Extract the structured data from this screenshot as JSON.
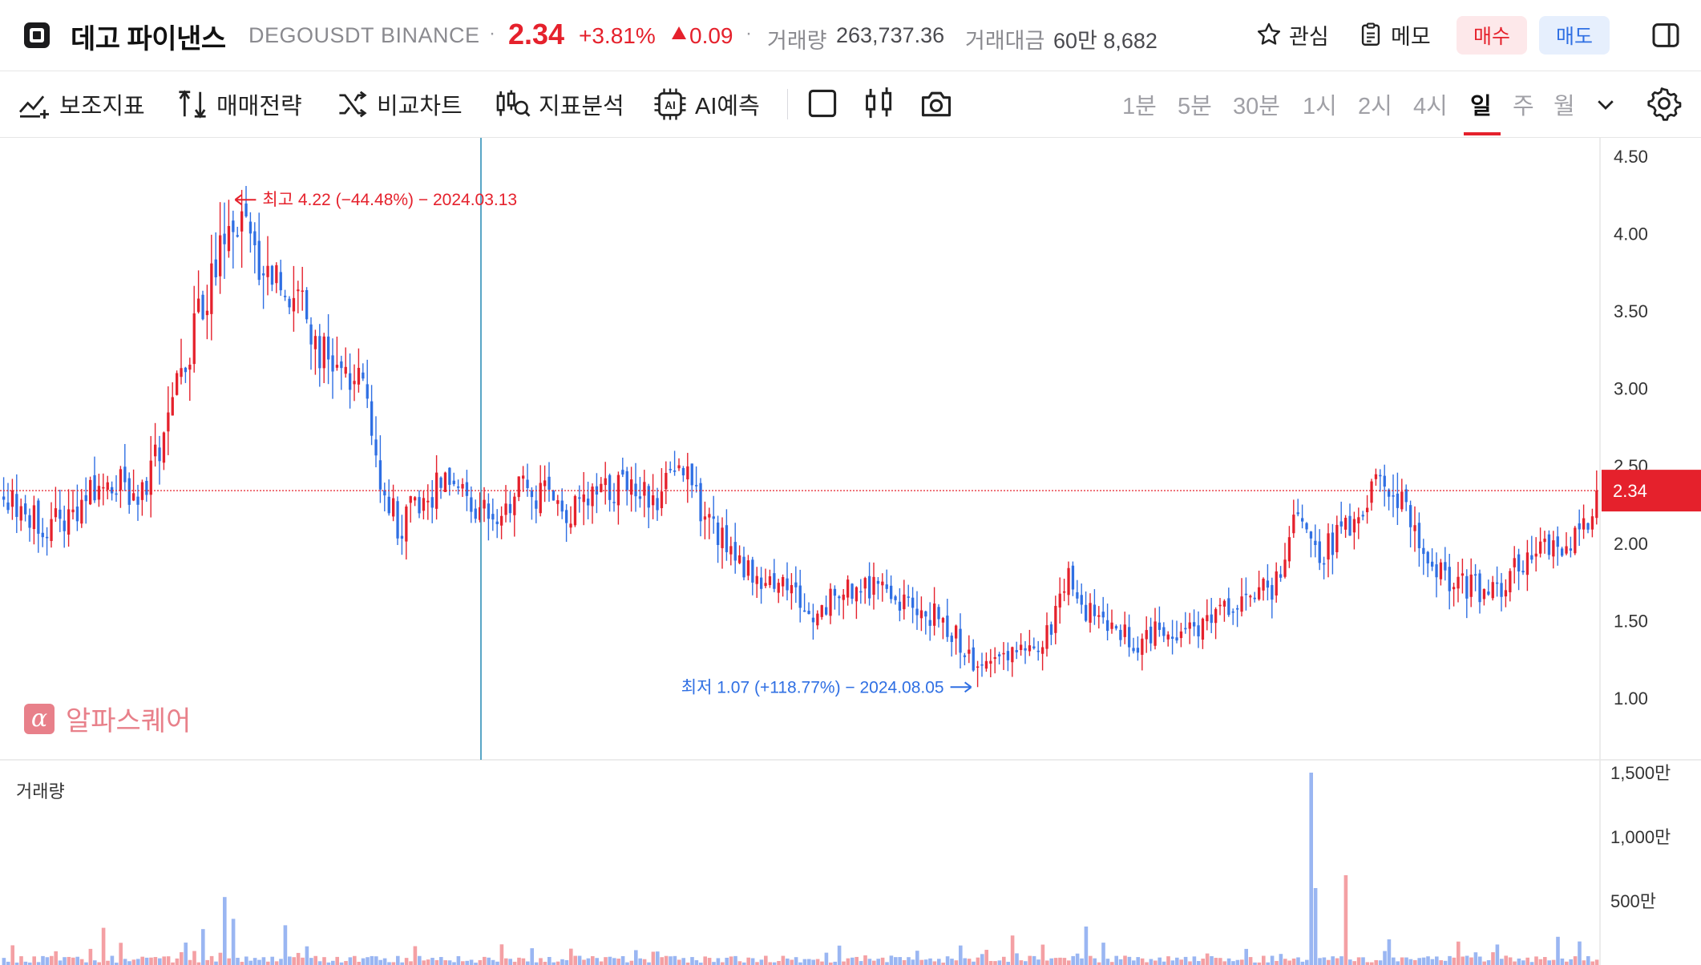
{
  "header": {
    "name": "데고 파이낸스",
    "symbol": "DEGOUSDT",
    "exchange": "BINANCE",
    "price": "2.34",
    "change_pct": "+3.81%",
    "change_abs": "0.09",
    "volume_label": "거래량",
    "volume_value": "263,737.36",
    "turnover_label": "거래대금",
    "turnover_value": "60만 8,682",
    "watch_label": "관심",
    "memo_label": "메모",
    "buy_label": "매수",
    "sell_label": "매도"
  },
  "toolbar": {
    "items": [
      "보조지표",
      "매매전략",
      "비교차트",
      "지표분석",
      "AI예측"
    ],
    "timeframes": [
      "1분",
      "5분",
      "30분",
      "1시",
      "2시",
      "4시",
      "일",
      "주",
      "월"
    ],
    "active_timeframe": "일"
  },
  "watermark": {
    "text": "알파스퀘어",
    "glyph": "α"
  },
  "colors": {
    "up": "#e5212c",
    "down": "#2f6fe3",
    "vol_up": "#f4a0a4",
    "vol_down": "#9ab6f2",
    "crosshair": "#2f8fb8"
  },
  "chart_data": {
    "type": "candlestick",
    "ylim": [
      0.6,
      4.62
    ],
    "yticks": [
      "4.50",
      "4.00",
      "3.50",
      "3.00",
      "2.50",
      "2.00",
      "1.50",
      "1.00"
    ],
    "current_price": 2.34,
    "current_label": "2.34",
    "annotations": {
      "high": {
        "text": "최고 4.22 (−44.48%) − 2024.03.13",
        "value": 4.22
      },
      "low": {
        "text": "최저 1.07 (+118.77%) − 2024.08.05",
        "value": 1.07
      }
    },
    "price_path": [
      [
        0,
        2.33
      ],
      [
        5,
        2.18
      ],
      [
        10,
        2.1
      ],
      [
        14,
        2.15
      ],
      [
        20,
        2.3
      ],
      [
        25,
        2.4
      ],
      [
        31,
        2.3
      ],
      [
        37,
        2.65
      ],
      [
        42,
        3.2
      ],
      [
        47,
        3.6
      ],
      [
        52,
        4.22
      ],
      [
        58,
        3.85
      ],
      [
        64,
        3.7
      ],
      [
        70,
        3.45
      ],
      [
        75,
        3.15
      ],
      [
        80,
        3.05
      ],
      [
        84,
        2.95
      ],
      [
        87,
        2.45
      ],
      [
        91,
        2.1
      ],
      [
        97,
        2.3
      ],
      [
        103,
        2.4
      ],
      [
        108,
        2.28
      ],
      [
        114,
        2.2
      ],
      [
        120,
        2.35
      ],
      [
        126,
        2.3
      ],
      [
        132,
        2.2
      ],
      [
        138,
        2.32
      ],
      [
        144,
        2.4
      ],
      [
        150,
        2.3
      ],
      [
        157,
        2.45
      ],
      [
        160,
        2.28
      ],
      [
        165,
        2.05
      ],
      [
        170,
        1.88
      ],
      [
        176,
        1.78
      ],
      [
        182,
        1.72
      ],
      [
        186,
        1.5
      ],
      [
        192,
        1.65
      ],
      [
        198,
        1.75
      ],
      [
        204,
        1.7
      ],
      [
        210,
        1.55
      ],
      [
        216,
        1.55
      ],
      [
        221,
        1.35
      ],
      [
        225,
        1.18
      ],
      [
        230,
        1.28
      ],
      [
        236,
        1.3
      ],
      [
        242,
        1.45
      ],
      [
        246,
        1.75
      ],
      [
        250,
        1.55
      ],
      [
        256,
        1.45
      ],
      [
        262,
        1.35
      ],
      [
        268,
        1.45
      ],
      [
        274,
        1.42
      ],
      [
        280,
        1.55
      ],
      [
        286,
        1.65
      ],
      [
        291,
        1.7
      ],
      [
        295,
        1.75
      ],
      [
        299,
        2.2
      ],
      [
        303,
        1.9
      ],
      [
        308,
        2.05
      ],
      [
        313,
        2.2
      ],
      [
        318,
        2.45
      ],
      [
        322,
        2.3
      ],
      [
        325,
        2.15
      ],
      [
        330,
        1.85
      ],
      [
        336,
        1.72
      ],
      [
        341,
        1.7
      ],
      [
        346,
        1.68
      ],
      [
        351,
        1.9
      ],
      [
        356,
        2.05
      ],
      [
        360,
        1.95
      ],
      [
        365,
        2.1
      ],
      [
        368,
        2.34
      ]
    ],
    "ylabel": ""
  },
  "volume": {
    "title": "거래량",
    "ylim": [
      0,
      1600
    ],
    "yticks": [
      "1,500만",
      "1,000만",
      "500만"
    ],
    "spikes": [
      [
        302,
        1500
      ],
      [
        303,
        600
      ],
      [
        310,
        700
      ],
      [
        51,
        530
      ],
      [
        53,
        360
      ],
      [
        46,
        280
      ],
      [
        23,
        290
      ],
      [
        65,
        310
      ],
      [
        233,
        230
      ],
      [
        250,
        300
      ],
      [
        320,
        200
      ],
      [
        359,
        220
      ]
    ]
  }
}
